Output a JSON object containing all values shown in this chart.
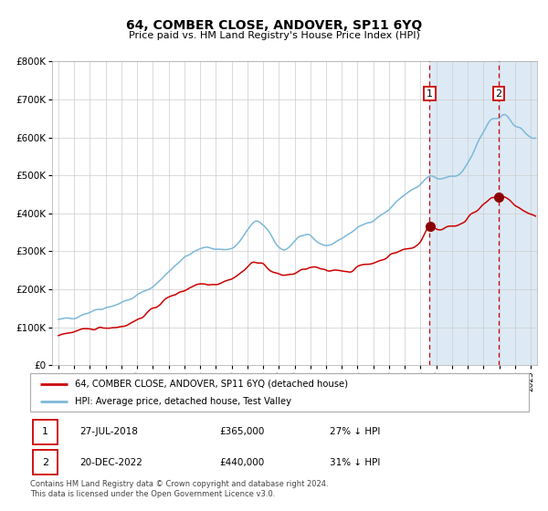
{
  "title": "64, COMBER CLOSE, ANDOVER, SP11 6YQ",
  "subtitle": "Price paid vs. HM Land Registry's House Price Index (HPI)",
  "legend_line1": "64, COMBER CLOSE, ANDOVER, SP11 6YQ (detached house)",
  "legend_line2": "HPI: Average price, detached house, Test Valley",
  "annotation1_date": "27-JUL-2018",
  "annotation1_price": "£365,000",
  "annotation1_hpi": "27% ↓ HPI",
  "annotation2_date": "20-DEC-2022",
  "annotation2_price": "£440,000",
  "annotation2_hpi": "31% ↓ HPI",
  "footer": "Contains HM Land Registry data © Crown copyright and database right 2024.\nThis data is licensed under the Open Government Licence v3.0.",
  "hpi_color": "#7db8d8",
  "price_color": "#cc0000",
  "marker_color": "#8b0000",
  "annotation_color": "#cc0000",
  "bg_shade_color": "#ddeaf5",
  "ylim": [
    0,
    800000
  ],
  "yticks": [
    0,
    100000,
    200000,
    300000,
    400000,
    500000,
    600000,
    700000,
    800000
  ],
  "sale1_year": 2018.58,
  "sale1_price": 365000,
  "sale2_year": 2022.96,
  "sale2_price": 440000,
  "xmin": 1994.6,
  "xmax": 2025.4
}
